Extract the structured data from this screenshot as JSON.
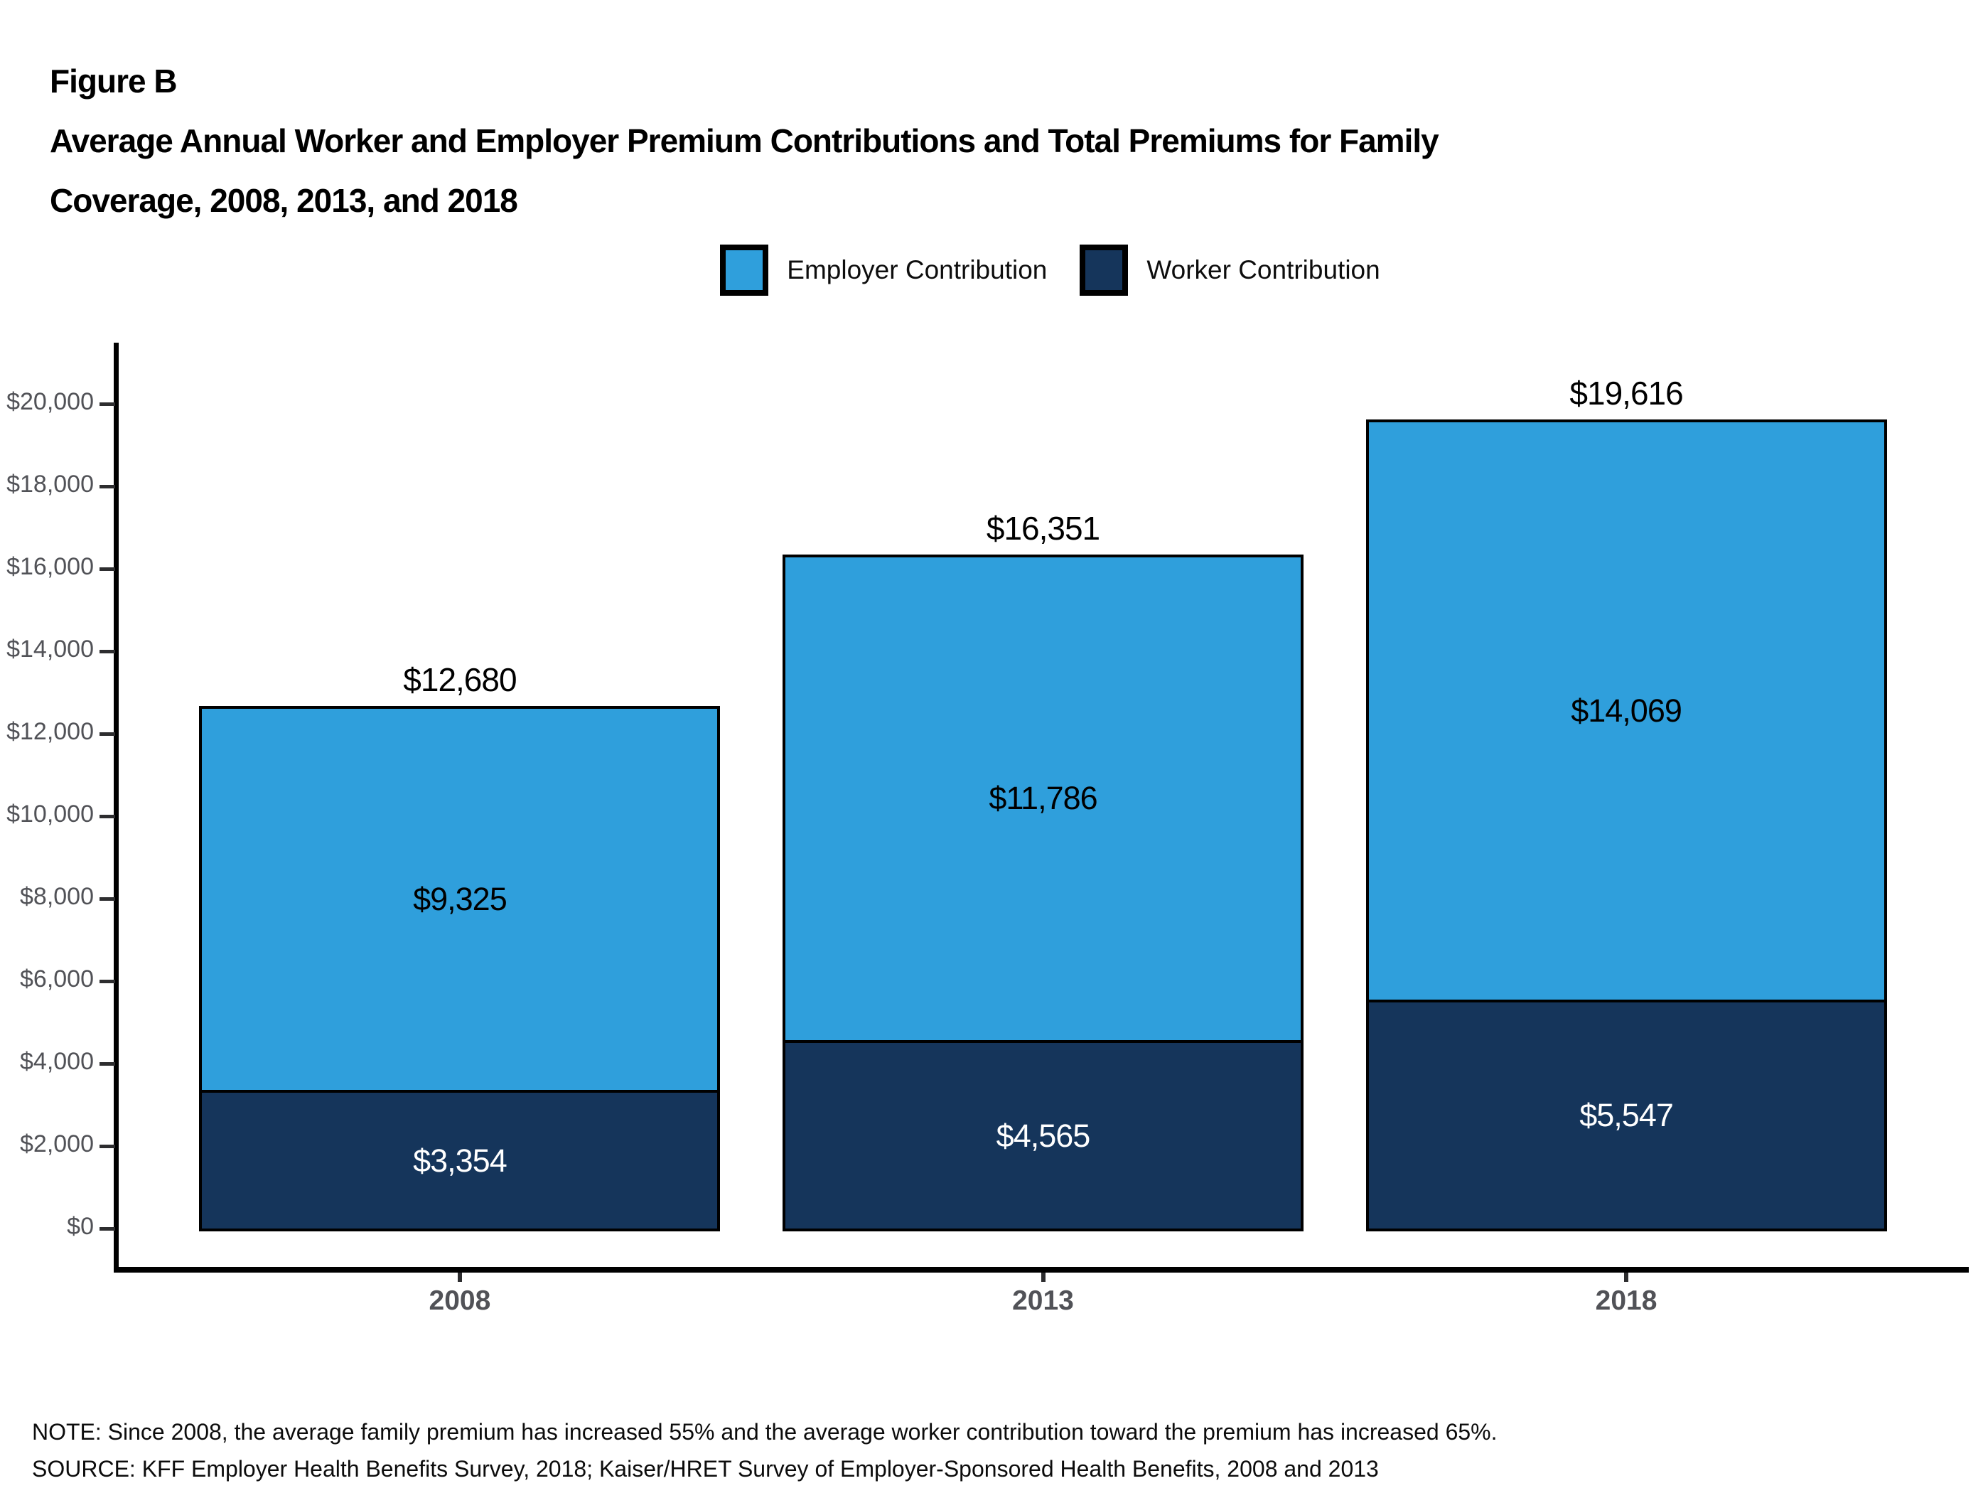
{
  "figure": {
    "label": "Figure B",
    "title_line1": "Average Annual Worker and Employer Premium Contributions and Total Premiums for Family",
    "title_line2": "Coverage, 2008, 2013, and 2018"
  },
  "legend": [
    {
      "label": "Employer Contribution",
      "color": "#2F9FDC"
    },
    {
      "label": "Worker Contribution",
      "color": "#15355B"
    }
  ],
  "chart_data": {
    "type": "bar",
    "stacked": true,
    "title": "Average Annual Worker and Employer Premium Contributions and Total Premiums for Family Coverage, 2008, 2013, and 2018",
    "categories": [
      "2008",
      "2013",
      "2018"
    ],
    "series": [
      {
        "name": "Worker Contribution",
        "color": "#15355B",
        "values": [
          3354,
          4565,
          5547
        ],
        "labels": [
          "$3,354",
          "$4,565",
          "$5,547"
        ]
      },
      {
        "name": "Employer Contribution",
        "color": "#2F9FDC",
        "values": [
          9325,
          11786,
          14069
        ],
        "labels": [
          "$9,325",
          "$11,786",
          "$14,069"
        ]
      }
    ],
    "totals": [
      12680,
      16351,
      19616
    ],
    "total_labels": [
      "$12,680",
      "$16,351",
      "$19,616"
    ],
    "y_axis": {
      "tick_values": [
        0,
        2000,
        4000,
        6000,
        8000,
        10000,
        12000,
        14000,
        16000,
        18000,
        20000
      ],
      "tick_labels": [
        "$0",
        "$2,000",
        "$4,000",
        "$6,000",
        "$8,000",
        "$10,000",
        "$12,000",
        "$14,000",
        "$16,000",
        "$18,000",
        "$20,000"
      ],
      "range": [
        0,
        21500
      ],
      "grid": false
    },
    "legend_position": "top"
  },
  "notes": {
    "note": "NOTE: Since 2008, the average family premium has increased 55% and the average worker contribution toward the premium has increased 65%.",
    "source": "SOURCE: KFF Employer Health Benefits Survey, 2018; Kaiser/HRET Survey of Employer-Sponsored Health Benefits, 2008 and 2013"
  }
}
